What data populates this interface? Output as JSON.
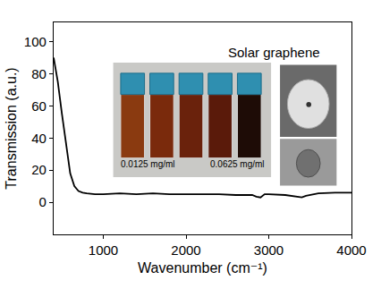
{
  "chart_data": {
    "type": "line",
    "x_label": "Wavenumber (cm⁻¹)",
    "y_label": "Transmission (a.u.)",
    "x": [
      400,
      450,
      500,
      550,
      600,
      650,
      700,
      750,
      800,
      900,
      1000,
      1200,
      1400,
      1600,
      1800,
      2000,
      2200,
      2400,
      2600,
      2800,
      2850,
      2900,
      2950,
      3000,
      3200,
      3350,
      3400,
      3450,
      3600,
      3800,
      4000
    ],
    "values": [
      90,
      75,
      55,
      35,
      18,
      10,
      7,
      6,
      5.5,
      5,
      5,
      5.5,
      5,
      5.5,
      5,
      5,
      5,
      5,
      4.5,
      4.5,
      3.5,
      3,
      5,
      5,
      4.5,
      3.5,
      3,
      4,
      5.5,
      6,
      6
    ],
    "color": "#000000",
    "xlim": [
      400,
      4000
    ],
    "xticks": [
      1000,
      2000,
      3000,
      4000
    ],
    "ylim": [
      -20,
      112
    ],
    "yticks": [
      0,
      20,
      40,
      60,
      80,
      100
    ],
    "grid": false,
    "annotations": [
      {
        "text": "Solar graphene"
      },
      {
        "text": "0.0125 mg/ml"
      },
      {
        "text": "0.0625 mg/ml"
      }
    ]
  }
}
